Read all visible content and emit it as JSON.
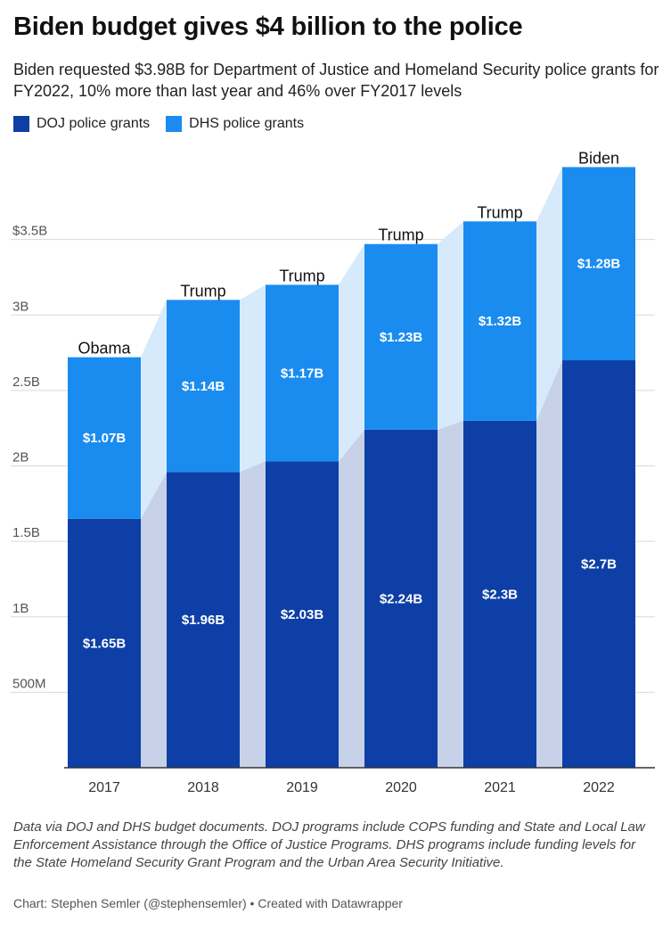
{
  "title": "Biden budget gives $4 billion to the police",
  "subtitle": "Biden requested $3.98B for Department of Justice and Homeland Security police grants for FY2022, 10% more than last year and 46% over FY2017 levels",
  "legend": [
    {
      "label": "DOJ police grants",
      "color": "#0d3fa6"
    },
    {
      "label": "DHS police grants",
      "color": "#1a8cf0"
    }
  ],
  "chart_data": {
    "type": "bar",
    "stacked": true,
    "categories": [
      "2017",
      "2018",
      "2019",
      "2020",
      "2021",
      "2022"
    ],
    "series": [
      {
        "name": "DOJ police grants",
        "color": "#0d3fa6",
        "values": [
          1.65,
          1.96,
          2.03,
          2.24,
          2.3,
          2.7
        ],
        "labels": [
          "$1.65B",
          "$1.96B",
          "$2.03B",
          "$2.24B",
          "$2.3B",
          "$2.7B"
        ]
      },
      {
        "name": "DHS police grants",
        "color": "#1a8cf0",
        "values": [
          1.07,
          1.14,
          1.17,
          1.23,
          1.32,
          1.28
        ],
        "labels": [
          "$1.07B",
          "$1.14B",
          "$1.17B",
          "$1.23B",
          "$1.32B",
          "$1.28B"
        ]
      }
    ],
    "bar_annotations": [
      "Obama",
      "Trump",
      "Trump",
      "Trump",
      "Trump",
      "Biden"
    ],
    "yticks": [
      {
        "value": 0.5,
        "label": "500M"
      },
      {
        "value": 1,
        "label": "1B"
      },
      {
        "value": 1.5,
        "label": "1.5B"
      },
      {
        "value": 2,
        "label": "2B"
      },
      {
        "value": 2.5,
        "label": "2.5B"
      },
      {
        "value": 3,
        "label": "3B"
      },
      {
        "value": 3.5,
        "label": "3.5B"
      }
    ],
    "ytick_prefix": "$",
    "ylim": [
      0,
      4
    ],
    "grid": true,
    "legend_position": "top-left",
    "area_fill_colors": [
      "#c7d1e8",
      "#d7eafc"
    ]
  },
  "notes": "Data via DOJ and DHS budget documents. DOJ programs include COPS funding and State and Local Law Enforcement Assistance through the Office of Justice Programs. DHS programs include funding levels for the State Homeland Security Grant Program and the Urban Area Security Initiative.",
  "credit": "Chart: Stephen Semler (@stephensemler) • Created with Datawrapper"
}
